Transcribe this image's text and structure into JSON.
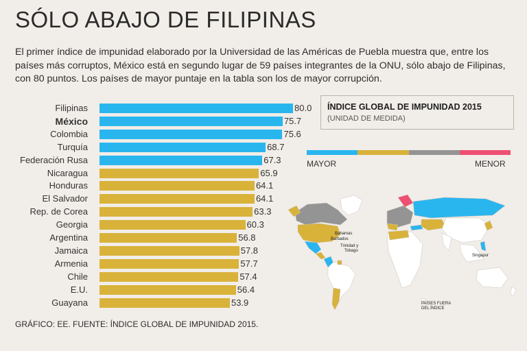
{
  "header": {
    "title": "SÓLO ABAJO DE FILIPINAS",
    "subtitle": "El primer índice de impunidad elaborado por la Universidad de las Américas de Puebla muestra que, entre los países más corruptos, México está en segundo lugar de 59 países integrantes de la ONU, sólo abajo de Filipinas, con 80 puntos. Los países de mayor puntaje en la tabla son los de mayor corrupción."
  },
  "chart_data": {
    "type": "bar",
    "orientation": "horizontal",
    "categories": [
      "Filipinas",
      "México",
      "Colombia",
      "Turquía",
      "Federación Rusa",
      "Nicaragua",
      "Honduras",
      "El Salvador",
      "Rep. de Corea",
      "Georgia",
      "Argentina",
      "Jamaica",
      "Armenia",
      "Chile",
      "E.U.",
      "Guayana"
    ],
    "values": [
      80.0,
      75.7,
      75.6,
      68.7,
      67.3,
      65.9,
      64.1,
      64.1,
      63.3,
      60.3,
      56.8,
      57.8,
      57.7,
      57.4,
      56.4,
      53.9
    ],
    "value_labels": [
      "80.0",
      "75.7",
      "75.6",
      "68.7",
      "67.3",
      "65.9",
      "64.1",
      "64.1",
      "63.3",
      "60.3",
      "56.8",
      "57.8",
      "57.7",
      "57.4",
      "56.4",
      "53.9"
    ],
    "groups": [
      "mayor",
      "mayor",
      "mayor",
      "mayor",
      "mayor",
      "medio",
      "medio",
      "medio",
      "medio",
      "medio",
      "medio",
      "medio",
      "medio",
      "medio",
      "medio",
      "medio"
    ],
    "highlight": "México",
    "xlim": [
      0,
      80
    ],
    "legend": {
      "title": "ÍNDICE GLOBAL DE IMPUNIDAD 2015",
      "subtitle": "(UNIDAD DE MEDIDA)",
      "high_label": "MAYOR",
      "low_label": "MENOR",
      "scale_colors": [
        "#29b6ef",
        "#d9b23a",
        "#949494",
        "#ee4f73"
      ]
    }
  },
  "colors": {
    "mayor": "#29b6ef",
    "medio": "#d9b23a",
    "bajo": "#949494",
    "menor": "#ee4f73"
  },
  "map": {
    "labels": {
      "bahamas": "Bahamas",
      "barbados": "Barbados",
      "trinidad": "Trinidad y",
      "tobago": "Tobago",
      "singapur": "Singapur",
      "outside_1": "PAÍSES FUERA",
      "outside_2": "DEL ÍNDICE"
    }
  },
  "footer": {
    "credit": "GRÁFICO: EE. FUENTE: ÍNDICE GLOBAL DE IMPUNIDAD 2015."
  }
}
